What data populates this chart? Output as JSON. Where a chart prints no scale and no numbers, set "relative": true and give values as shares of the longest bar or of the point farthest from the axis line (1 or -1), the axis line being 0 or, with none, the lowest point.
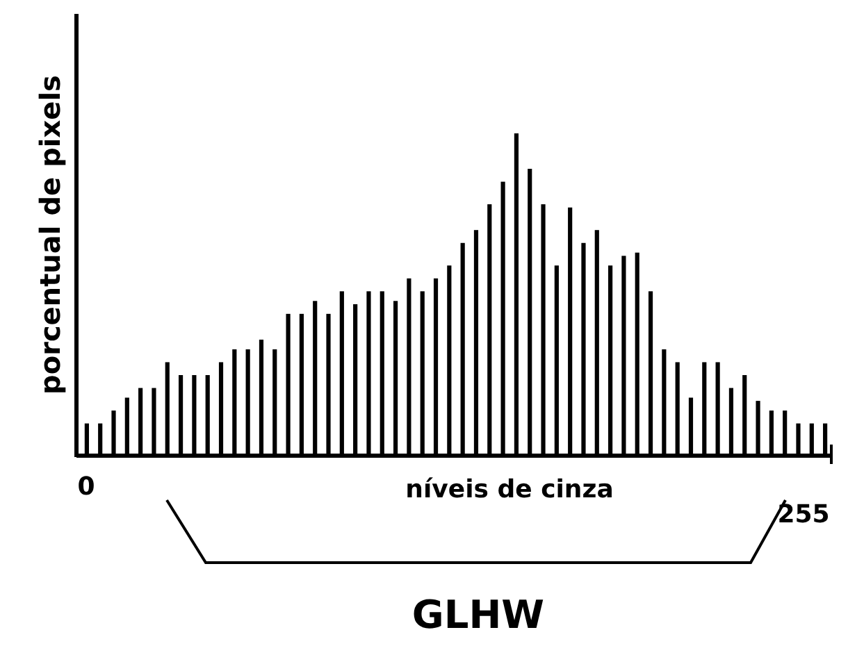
{
  "chart_data": {
    "type": "bar",
    "relative": true,
    "xlabel": "níveis de cinza",
    "ylabel": "porcentual de pixels",
    "color": "#000000",
    "categories": [
      null,
      null,
      null,
      null,
      null,
      null,
      null,
      null,
      null,
      null,
      null,
      null,
      null,
      null,
      null,
      null,
      null,
      null,
      null,
      null,
      null,
      null,
      null,
      null,
      null,
      null,
      null,
      null,
      null,
      null,
      null,
      null,
      null,
      null,
      null,
      null,
      null,
      null,
      null,
      null,
      null,
      null,
      null,
      null,
      null,
      null,
      null,
      null,
      null,
      null,
      null,
      null,
      null,
      null,
      null,
      null
    ],
    "values": [
      0.1,
      0.1,
      0.14,
      0.18,
      0.21,
      0.21,
      0.29,
      0.25,
      0.25,
      0.25,
      0.29,
      0.33,
      0.33,
      0.36,
      0.33,
      0.44,
      0.44,
      0.48,
      0.44,
      0.51,
      0.47,
      0.51,
      0.51,
      0.48,
      0.55,
      0.51,
      0.55,
      0.59,
      0.66,
      0.7,
      0.78,
      0.85,
      1.0,
      0.89,
      0.78,
      0.59,
      0.77,
      0.66,
      0.7,
      0.59,
      0.62,
      0.63,
      0.51,
      0.33,
      0.29,
      0.18,
      0.29,
      0.29,
      0.21,
      0.25,
      0.17,
      0.14,
      0.14,
      0.1,
      0.1,
      0.1
    ],
    "annotations": [
      "0",
      "255",
      "GLHW"
    ]
  }
}
